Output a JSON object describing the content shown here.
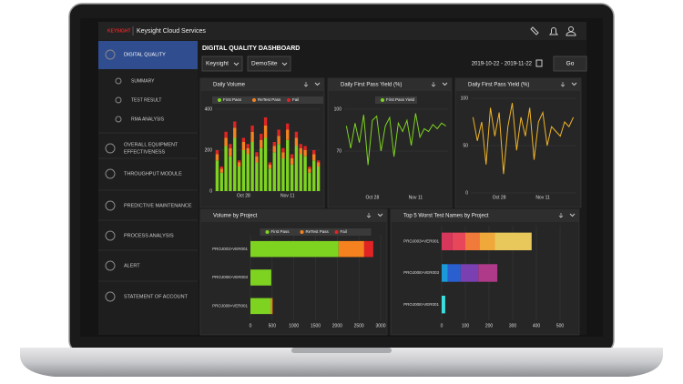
{
  "header": {
    "brand": "KEYSIGHT",
    "service": "Keysight Cloud Services"
  },
  "nav": [
    {
      "lines": [
        "DIGITAL QUALITY"
      ],
      "active": true
    },
    {
      "lines": [
        "SUMMARY"
      ],
      "sub": true
    },
    {
      "lines": [
        "TEST RESULT"
      ],
      "sub": true
    },
    {
      "lines": [
        "RMA ANALYSIS"
      ],
      "sub": true
    },
    {
      "lines": [
        "OVERALL EQUIPMENT",
        "EFFECTIVENESS"
      ]
    },
    {
      "lines": [
        "THROUGHPUT MODULE"
      ]
    },
    {
      "lines": [
        "PREDICTIVE MAINTENANCE"
      ]
    },
    {
      "lines": [
        "PROCESS ANALYSIS"
      ]
    },
    {
      "lines": [
        "ALERT"
      ]
    },
    {
      "lines": [
        "STATEMENT OF ACCOUNT"
      ]
    }
  ],
  "dashboard": {
    "title": "DIGITAL QUALITY DASHBOARD",
    "filters": [
      "Keysight",
      "DemoSite"
    ],
    "date_range": "2019-10-22 - 2019-11-22",
    "button": "Go"
  },
  "panels": [
    {
      "title": "Daily Volume",
      "type": "stacked-bar",
      "categories": [
        null,
        null,
        null,
        null,
        null,
        null,
        "Oct 28",
        null,
        null,
        null,
        null,
        null,
        null,
        null,
        null,
        null,
        "Nov 11",
        null,
        null,
        null,
        null,
        null,
        null,
        null
      ],
      "series": [
        {
          "name": "First Pass",
          "color": "#7ed321",
          "values": [
            150,
            90,
            220,
            170,
            260,
            120,
            200,
            180,
            240,
            140,
            210,
            260,
            110,
            190,
            230,
            160,
            250,
            130,
            220,
            180,
            170,
            90,
            150,
            120
          ]
        },
        {
          "name": "ReTest Pass",
          "color": "#f5821f",
          "values": [
            30,
            20,
            40,
            40,
            50,
            20,
            40,
            30,
            50,
            30,
            40,
            60,
            20,
            30,
            40,
            30,
            50,
            30,
            40,
            30,
            30,
            20,
            30,
            20
          ]
        },
        {
          "name": "Fail",
          "color": "#e02424",
          "values": [
            20,
            10,
            30,
            20,
            30,
            10,
            20,
            20,
            30,
            20,
            30,
            40,
            10,
            20,
            30,
            20,
            30,
            20,
            30,
            20,
            20,
            10,
            20,
            10
          ]
        }
      ],
      "ylim": [
        0,
        400
      ],
      "yticks": [
        0,
        200,
        400
      ]
    },
    {
      "title": "Daily First Pass Yield (%)",
      "type": "line",
      "categories": [
        null,
        null,
        null,
        null,
        null,
        null,
        "Oct 28",
        null,
        null,
        null,
        null,
        null,
        null,
        null,
        null,
        null,
        "Nov 11",
        null,
        null,
        null,
        null,
        null,
        null,
        null
      ],
      "series": [
        {
          "name": "First Pass Yield",
          "color": "#7ed321",
          "values": [
            88,
            72,
            90,
            76,
            96,
            60,
            92,
            95,
            70,
            88,
            94,
            66,
            90,
            84,
            92,
            74,
            97,
            80,
            86,
            84,
            89,
            86,
            90,
            88
          ]
        }
      ],
      "ylim": [
        40,
        100
      ],
      "yticks": [
        70,
        100
      ]
    },
    {
      "title": "Daily First Pass Yield (%)",
      "type": "line",
      "categories": [
        null,
        null,
        null,
        null,
        null,
        null,
        "Oct 28",
        null,
        null,
        null,
        null,
        null,
        null,
        null,
        null,
        null,
        "Nov 11",
        null,
        null,
        null,
        null,
        null,
        null,
        null
      ],
      "series": [
        {
          "color": "#f0b429",
          "values": [
            80,
            55,
            75,
            30,
            90,
            60,
            85,
            20,
            70,
            95,
            45,
            80,
            60,
            90,
            35,
            75,
            85,
            50,
            70,
            65,
            60,
            75,
            70,
            80
          ]
        }
      ],
      "ylim": [
        0,
        100
      ],
      "yticks": [
        0,
        50,
        100
      ]
    },
    {
      "title": "Volume by Project",
      "type": "stacked-hbar",
      "categories": [
        "PROJ003>VER001",
        "PROJ008>VER003",
        "PROJ008>VER001"
      ],
      "series": [
        {
          "name": "First Pass",
          "color": "#7ed321",
          "values": [
            2030,
            480,
            470
          ]
        },
        {
          "name": "ReTest Pass",
          "color": "#f5821f",
          "values": [
            590,
            0,
            40
          ]
        },
        {
          "name": "Fail",
          "color": "#e02424",
          "values": [
            210,
            0,
            0
          ]
        }
      ],
      "xlim": [
        0,
        3000
      ],
      "xticks": [
        0,
        500,
        1000,
        1500,
        2000,
        2500,
        3000
      ]
    },
    {
      "title": "Top 5 Worst Test Names by Project",
      "type": "stacked-hbar",
      "categories": [
        "PROJ003>VER001",
        "PROJ008>VER003",
        "PROJ008>VER001"
      ],
      "series": [
        {
          "colors": [
            "#d6375a",
            "#1a9ad6",
            "#3ae0e0"
          ],
          "values": [
            45,
            25,
            15
          ]
        },
        {
          "colors": [
            "#e8465a",
            "#2a5fd0",
            "#3ae0e0"
          ],
          "values": [
            55,
            55,
            0
          ]
        },
        {
          "colors": [
            "#f07a3a",
            "#7a3fb0",
            "#3ae0e0"
          ],
          "values": [
            60,
            75,
            0
          ]
        },
        {
          "colors": [
            "#f0a83a",
            "#b03a8a",
            "#3ae0e0"
          ],
          "values": [
            65,
            80,
            0
          ]
        },
        {
          "colors": [
            "#e8c85a",
            "#b03a8a",
            "#3ae0e0"
          ],
          "values": [
            155,
            0,
            0
          ]
        }
      ],
      "xlim": [
        0,
        500
      ],
      "xticks": [
        0,
        100,
        200,
        300,
        400,
        500
      ]
    }
  ]
}
